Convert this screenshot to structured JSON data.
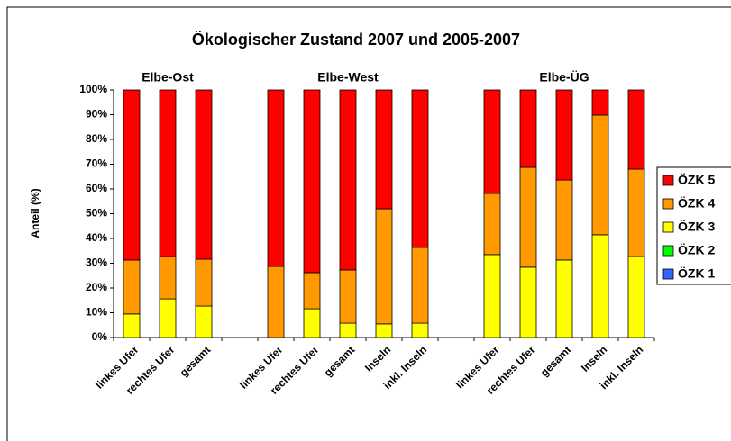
{
  "chart_data": {
    "type": "stacked_bar",
    "title": "Ökologischer Zustand 2007 und 2005-2007",
    "y_label": "Anteil (%)",
    "group_labels": [
      "Elbe-Ost",
      "Elbe-West",
      "Elbe-ÜG"
    ],
    "categories": [
      "linkes Ufer",
      "rechtes Ufer",
      "gesamt",
      null,
      "linkes Ufer",
      "rechtes Ufer",
      "gesamt",
      "Inseln",
      "inkl. Inseln",
      null,
      "linkes Ufer",
      "rechtes Ufer",
      "gesamt",
      "Inseln",
      "inkl. Inseln"
    ],
    "series": [
      {
        "name": "ÖZK 1",
        "color": "#3366ff",
        "values": [
          0,
          0,
          0,
          null,
          0,
          0,
          0,
          0,
          0,
          null,
          0,
          0,
          0,
          0,
          0
        ]
      },
      {
        "name": "ÖZK 2",
        "color": "#00ff00",
        "values": [
          0,
          0,
          0,
          null,
          0,
          0,
          0,
          0,
          0,
          null,
          0,
          0,
          0,
          0,
          0
        ]
      },
      {
        "name": "ÖZK 3",
        "color": "#ffff00",
        "values": [
          9.5,
          15.6,
          12.7,
          null,
          0,
          11.6,
          5.8,
          5.5,
          5.8,
          null,
          33.5,
          28.4,
          31.3,
          41.5,
          32.7
        ]
      },
      {
        "name": "ÖZK 4",
        "color": "#ff9900",
        "values": [
          21.8,
          17.1,
          18.9,
          null,
          28.7,
          14.6,
          21.5,
          46.5,
          30.6,
          null,
          24.7,
          40.3,
          32.3,
          48.3,
          35.3
        ]
      },
      {
        "name": "ÖZK 5",
        "color": "#ff0000",
        "values": [
          68.7,
          67.3,
          68.4,
          null,
          71.3,
          73.8,
          72.7,
          48.0,
          63.6,
          null,
          41.8,
          31.3,
          36.4,
          10.2,
          32.0
        ]
      }
    ],
    "ylim": [
      0,
      100
    ],
    "yticks": [
      {
        "value": 0,
        "label": "0%"
      },
      {
        "value": 10,
        "label": "10%"
      },
      {
        "value": 20,
        "label": "20%"
      },
      {
        "value": 30,
        "label": "30%"
      },
      {
        "value": 40,
        "label": "40%"
      },
      {
        "value": 50,
        "label": "50%"
      },
      {
        "value": 60,
        "label": "60%"
      },
      {
        "value": 70,
        "label": "70%"
      },
      {
        "value": 80,
        "label": "80%"
      },
      {
        "value": 90,
        "label": "90%"
      },
      {
        "value": 100,
        "label": "100%"
      }
    ],
    "grid": false,
    "legend": "right"
  }
}
